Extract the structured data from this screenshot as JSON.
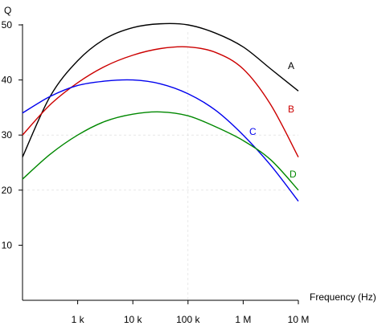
{
  "chart_data": {
    "type": "line",
    "xlabel": "Frequency (Hz)",
    "ylabel": "Q",
    "x_scale": "log",
    "xlim": [
      100,
      10000000
    ],
    "ylim": [
      0,
      51
    ],
    "grid": "faint dashed reference lines at x = 100 k and y = 20, 30",
    "x_ticks": [
      {
        "value": 1000,
        "label": "1 k"
      },
      {
        "value": 10000,
        "label": "10 k"
      },
      {
        "value": 100000,
        "label": "100 k"
      },
      {
        "value": 1000000,
        "label": "1 M"
      },
      {
        "value": 10000000,
        "label": "10 M"
      }
    ],
    "y_ticks": [
      {
        "value": 10,
        "label": "10"
      },
      {
        "value": 20,
        "label": "20"
      },
      {
        "value": 30,
        "label": "30"
      },
      {
        "value": 40,
        "label": "40"
      },
      {
        "value": 50,
        "label": "50"
      }
    ],
    "series": [
      {
        "name": "A",
        "color": "#000000",
        "points": [
          [
            100,
            26
          ],
          [
            316,
            37
          ],
          [
            1000,
            43.5
          ],
          [
            3162,
            47.5
          ],
          [
            10000,
            49.5
          ],
          [
            31623,
            50.2
          ],
          [
            100000,
            50
          ],
          [
            316228,
            48.5
          ],
          [
            1000000,
            46
          ],
          [
            3162278,
            42
          ],
          [
            10000000,
            38
          ]
        ]
      },
      {
        "name": "B",
        "color": "#cc0000",
        "points": [
          [
            100,
            30
          ],
          [
            316,
            35.5
          ],
          [
            1000,
            39.5
          ],
          [
            3162,
            42.5
          ],
          [
            10000,
            44.5
          ],
          [
            31623,
            45.7
          ],
          [
            100000,
            46
          ],
          [
            316228,
            45
          ],
          [
            1000000,
            42
          ],
          [
            3162278,
            35.5
          ],
          [
            10000000,
            26
          ]
        ]
      },
      {
        "name": "C",
        "color": "#0000ee",
        "points": [
          [
            100,
            34
          ],
          [
            316,
            37
          ],
          [
            1000,
            39
          ],
          [
            3162,
            39.8
          ],
          [
            10000,
            40
          ],
          [
            31623,
            39.3
          ],
          [
            100000,
            37.5
          ],
          [
            316228,
            34.5
          ],
          [
            1000000,
            30
          ],
          [
            3162278,
            24.5
          ],
          [
            10000000,
            18
          ]
        ]
      },
      {
        "name": "D",
        "color": "#008800",
        "points": [
          [
            100,
            22
          ],
          [
            316,
            26.5
          ],
          [
            1000,
            30
          ],
          [
            3162,
            32.5
          ],
          [
            10000,
            33.8
          ],
          [
            31623,
            34.2
          ],
          [
            100000,
            33.5
          ],
          [
            316228,
            31.5
          ],
          [
            1000000,
            29
          ],
          [
            3162278,
            25.5
          ],
          [
            10000000,
            20
          ]
        ]
      }
    ]
  }
}
